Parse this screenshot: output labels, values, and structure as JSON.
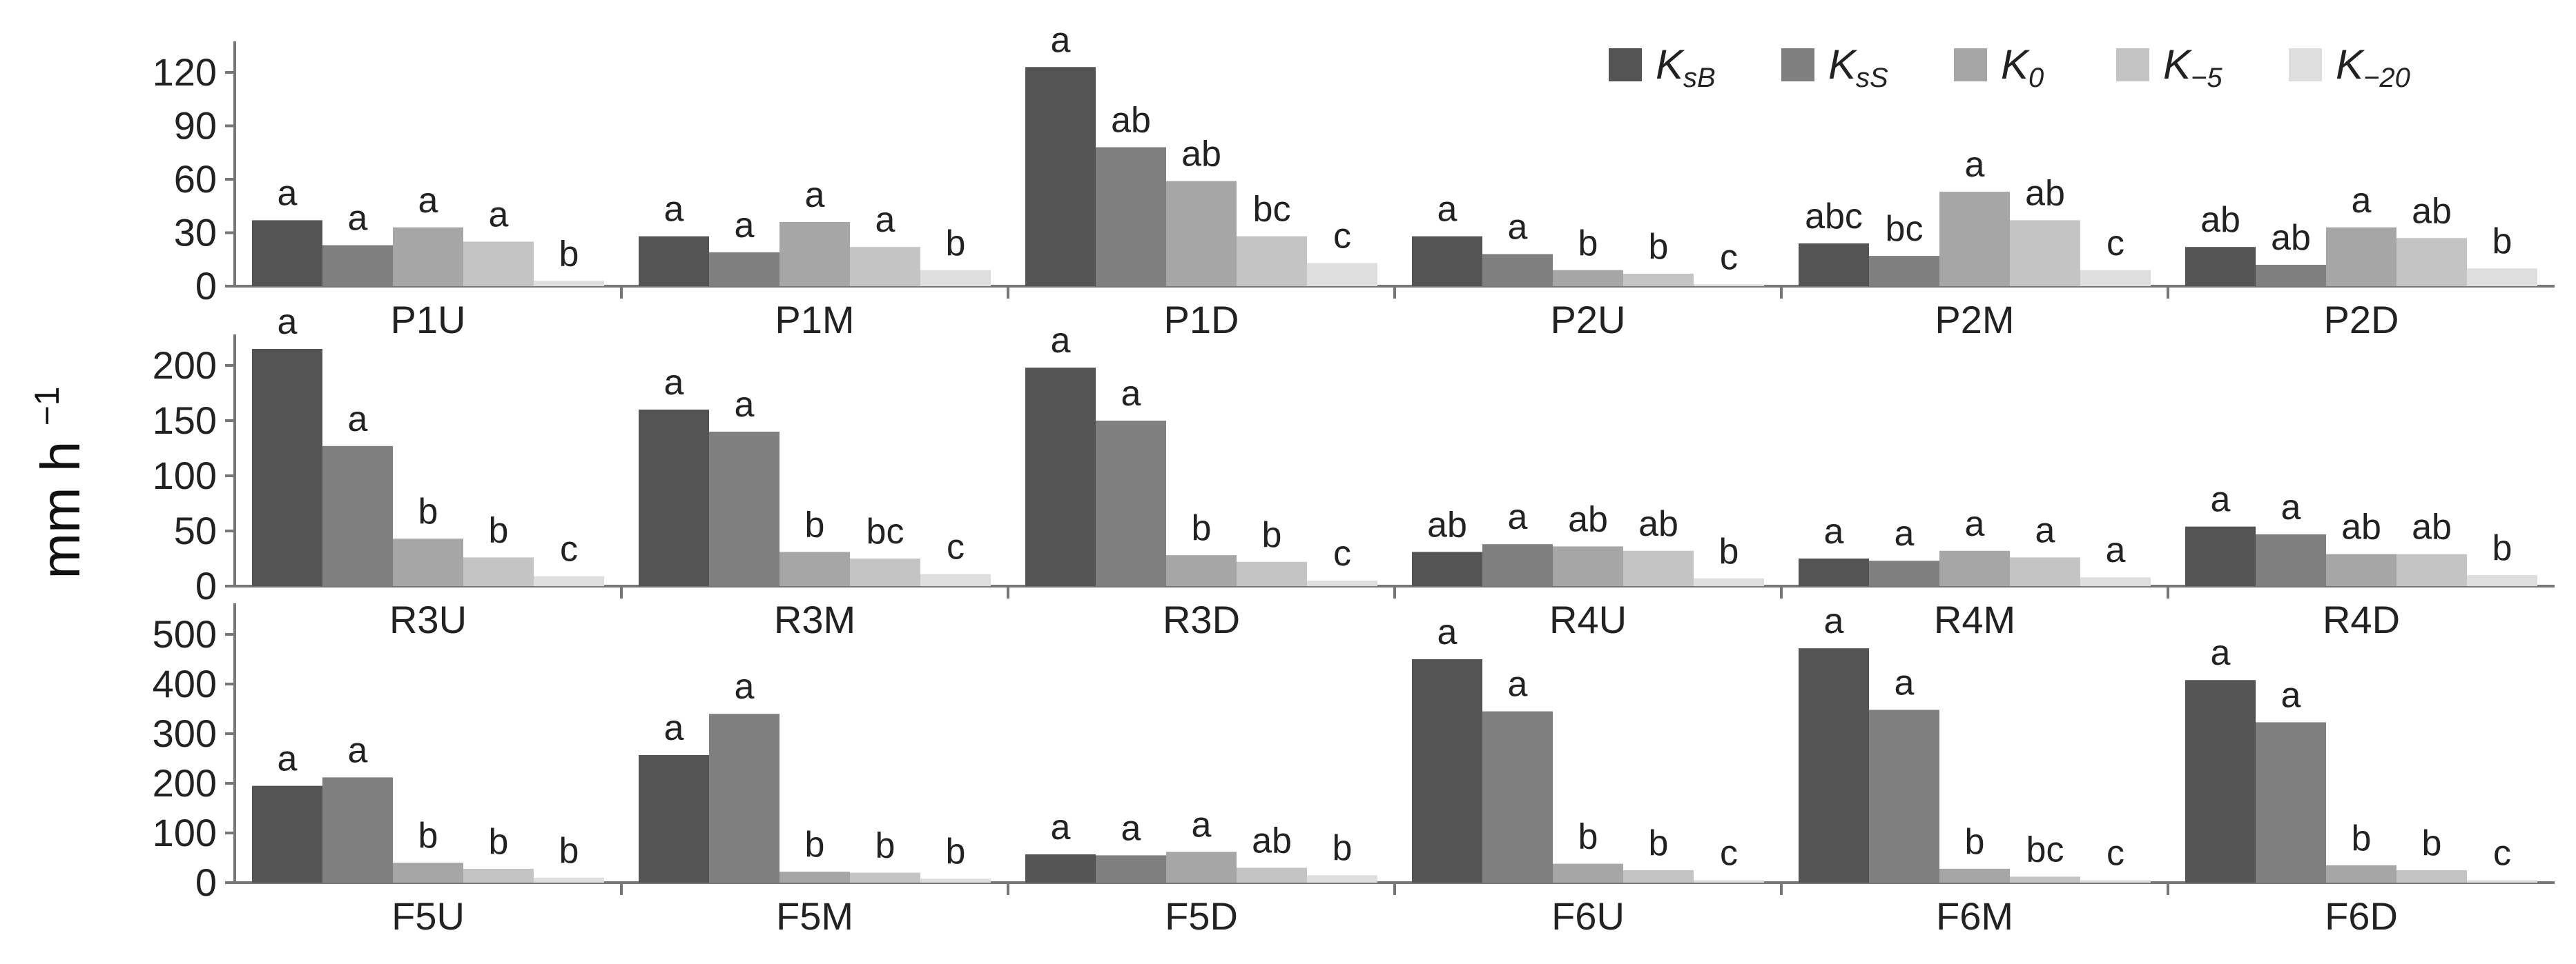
{
  "chart_data": {
    "type": "bar",
    "ylabel": "mm h",
    "ylabel_sup": "−1",
    "legend_position": "top-right",
    "colors": [
      "#545454",
      "#7f7f7f",
      "#a6a6a6",
      "#c4c4c4",
      "#dedede"
    ],
    "series": [
      {
        "name": "K",
        "sub": "sB"
      },
      {
        "name": "K",
        "sub": "sS"
      },
      {
        "name": "K",
        "sub": "0"
      },
      {
        "name": "K",
        "sub": "−5"
      },
      {
        "name": "K",
        "sub": "−20"
      }
    ],
    "panels": [
      {
        "yticks": [
          "0",
          "30",
          "60",
          "90",
          "120"
        ],
        "ylim": [
          0,
          130
        ],
        "groups": [
          {
            "name": "P1U",
            "values": [
              37,
              23,
              33,
              25,
              3
            ],
            "sig": [
              "a",
              "a",
              "a",
              "a",
              "b"
            ]
          },
          {
            "name": "P1M",
            "values": [
              28,
              19,
              36,
              22,
              9
            ],
            "sig": [
              "a",
              "a",
              "a",
              "a",
              "b"
            ]
          },
          {
            "name": "P1D",
            "values": [
              123,
              78,
              59,
              28,
              13
            ],
            "sig": [
              "a",
              "ab",
              "ab",
              "bc",
              "c"
            ]
          },
          {
            "name": "P2U",
            "values": [
              28,
              18,
              9,
              7,
              1
            ],
            "sig": [
              "a",
              "a",
              "b",
              "b",
              "c"
            ]
          },
          {
            "name": "P2M",
            "values": [
              24,
              17,
              53,
              37,
              9
            ],
            "sig": [
              "abc",
              "bc",
              "a",
              "ab",
              "c"
            ]
          },
          {
            "name": "P2D",
            "values": [
              22,
              12,
              33,
              27,
              10
            ],
            "sig": [
              "ab",
              "ab",
              "a",
              "ab",
              "b"
            ]
          }
        ]
      },
      {
        "yticks": [
          "0",
          "50",
          "100",
          "150",
          "200"
        ],
        "ylim": [
          0,
          225
        ],
        "groups": [
          {
            "name": "R3U",
            "values": [
              215,
              127,
              43,
              26,
              9
            ],
            "sig": [
              "a",
              "a",
              "b",
              "b",
              "c"
            ]
          },
          {
            "name": "R3M",
            "values": [
              160,
              140,
              31,
              25,
              11
            ],
            "sig": [
              "a",
              "a",
              "b",
              "bc",
              "c"
            ]
          },
          {
            "name": "R3D",
            "values": [
              198,
              150,
              28,
              22,
              5
            ],
            "sig": [
              "a",
              "a",
              "b",
              "b",
              "c"
            ]
          },
          {
            "name": "R4U",
            "values": [
              31,
              38,
              36,
              32,
              7
            ],
            "sig": [
              "ab",
              "a",
              "ab",
              "ab",
              "b"
            ]
          },
          {
            "name": "R4M",
            "values": [
              25,
              23,
              32,
              26,
              8
            ],
            "sig": [
              "a",
              "a",
              "a",
              "a",
              "a"
            ]
          },
          {
            "name": "R4D",
            "values": [
              54,
              47,
              29,
              29,
              10
            ],
            "sig": [
              "a",
              "a",
              "ab",
              "ab",
              "b"
            ]
          }
        ]
      },
      {
        "yticks": [
          "0",
          "100",
          "200",
          "300",
          "400",
          "500"
        ],
        "ylim": [
          0,
          500
        ],
        "groups": [
          {
            "name": "F5U",
            "values": [
              195,
              212,
              40,
              28,
              10
            ],
            "sig": [
              "a",
              "a",
              "b",
              "b",
              "b"
            ]
          },
          {
            "name": "F5M",
            "values": [
              257,
              340,
              22,
              20,
              8
            ],
            "sig": [
              "a",
              "a",
              "b",
              "b",
              "b"
            ]
          },
          {
            "name": "F5D",
            "values": [
              57,
              55,
              62,
              30,
              15
            ],
            "sig": [
              "a",
              "a",
              "a",
              "ab",
              "b"
            ]
          },
          {
            "name": "F6U",
            "values": [
              450,
              345,
              38,
              25,
              5
            ],
            "sig": [
              "a",
              "a",
              "b",
              "b",
              "c"
            ]
          },
          {
            "name": "F6M",
            "values": [
              472,
              348,
              28,
              12,
              5
            ],
            "sig": [
              "a",
              "a",
              "b",
              "bc",
              "c"
            ]
          },
          {
            "name": "F6D",
            "values": [
              408,
              323,
              35,
              25,
              5
            ],
            "sig": [
              "a",
              "a",
              "b",
              "b",
              "c"
            ]
          }
        ]
      }
    ]
  }
}
